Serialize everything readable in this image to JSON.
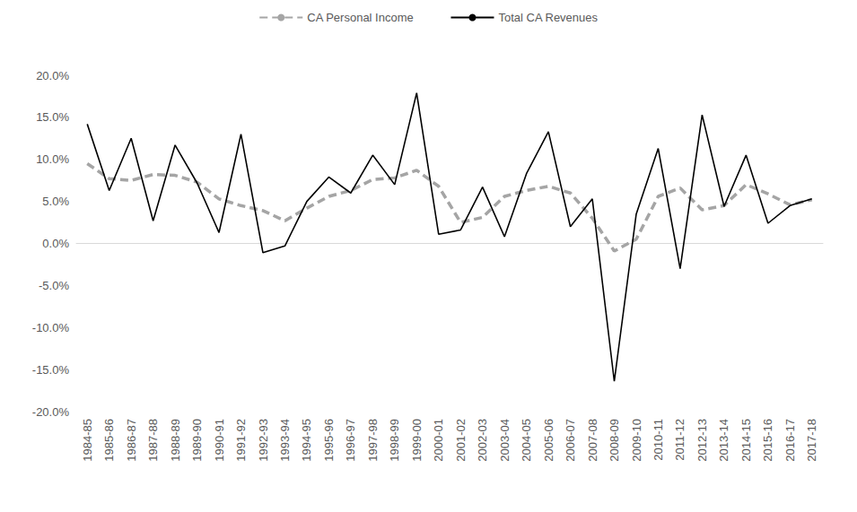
{
  "chart_data": {
    "type": "line",
    "categories": [
      "1984-85",
      "1985-86",
      "1986-87",
      "1987-88",
      "1988-89",
      "1989-90",
      "1990-91",
      "1991-92",
      "1992-93",
      "1993-94",
      "1994-95",
      "1995-96",
      "1996-97",
      "1997-98",
      "1998-99",
      "1999-00",
      "2000-01",
      "2001-02",
      "2002-03",
      "2003-04",
      "2004-05",
      "2005-06",
      "2006-07",
      "2007-08",
      "2008-09",
      "2009-10",
      "2010-11",
      "2011-12",
      "2012-13",
      "2013-14",
      "2014-15",
      "2015-16",
      "2016-17",
      "2017-18"
    ],
    "series": [
      {
        "name": "CA Personal Income",
        "color": "#a5a5a5",
        "line_style": "dashed",
        "values": [
          9.5,
          7.7,
          7.5,
          8.2,
          8.1,
          7.3,
          5.3,
          4.5,
          3.9,
          2.7,
          4.2,
          5.6,
          6.3,
          7.6,
          7.8,
          8.7,
          6.8,
          2.5,
          3.1,
          5.6,
          6.3,
          6.8,
          6.0,
          3.0,
          -0.9,
          0.5,
          5.6,
          6.6,
          4.0,
          4.5,
          7.0,
          5.9,
          4.6,
          5.2
        ]
      },
      {
        "name": "Total CA Revenues",
        "color": "#000000",
        "line_style": "solid",
        "values": [
          14.2,
          6.3,
          12.5,
          2.7,
          11.7,
          7.2,
          1.3,
          13.0,
          -1.1,
          -0.3,
          5.0,
          7.9,
          6.0,
          10.5,
          7.0,
          17.9,
          1.1,
          1.6,
          6.7,
          0.8,
          8.3,
          13.3,
          2.0,
          5.3,
          -16.4,
          3.5,
          11.3,
          -3.0,
          15.3,
          4.4,
          10.5,
          2.4,
          4.5,
          5.3
        ]
      }
    ],
    "ylim": [
      -20,
      20
    ],
    "yticks": [
      {
        "value": -20,
        "label": "-20.0%"
      },
      {
        "value": -15,
        "label": "-15.0%"
      },
      {
        "value": -10,
        "label": "-10.0%"
      },
      {
        "value": -5,
        "label": "-5.0%"
      },
      {
        "value": 0,
        "label": "0.0%"
      },
      {
        "value": 5,
        "label": "5.0%"
      },
      {
        "value": 10,
        "label": "10.0%"
      },
      {
        "value": 15,
        "label": "15.0%"
      },
      {
        "value": 20,
        "label": "20.0%"
      }
    ],
    "grid": false,
    "legend": "top"
  }
}
